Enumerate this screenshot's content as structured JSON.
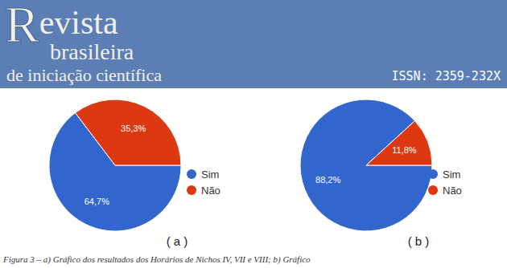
{
  "header": {
    "title": "Revista",
    "subtitle": "brasileira",
    "tagline": "de iniciação científica",
    "issn": "ISSN: 2359-232X"
  },
  "chart_data": [
    {
      "type": "pie",
      "title": "( a )",
      "categories": [
        "Sim",
        "Não"
      ],
      "values": [
        64.7,
        35.3
      ],
      "value_labels": [
        "64,7%",
        "35,3%"
      ],
      "colors": [
        "#3366cc",
        "#dc3912"
      ],
      "data_labels": true,
      "legend": "right"
    },
    {
      "type": "pie",
      "title": "( b )",
      "categories": [
        "Sim",
        "Não"
      ],
      "values": [
        88.2,
        11.8
      ],
      "value_labels": [
        "88,2%",
        "11,8%"
      ],
      "colors": [
        "#3366cc",
        "#dc3912"
      ],
      "data_labels": true,
      "legend": "right"
    }
  ],
  "caption": "Figura 3 – a) Gráfico dos resultados dos Horários de Nichos IV, VII e VIII; b) Gráfico"
}
